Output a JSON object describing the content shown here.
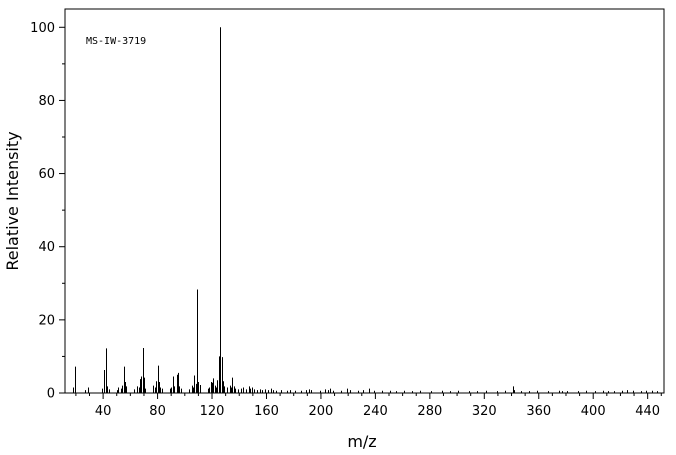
{
  "chart_data": {
    "type": "bar",
    "annotation": "MS-IW-3719",
    "xlabel": "m/z",
    "ylabel": "Relative Intensity",
    "xlim": [
      12,
      452
    ],
    "ylim": [
      0,
      105
    ],
    "x_ticks": [
      40,
      80,
      120,
      160,
      200,
      240,
      280,
      320,
      360,
      400,
      440
    ],
    "y_ticks": [
      0,
      20,
      40,
      60,
      80,
      100
    ],
    "grid": false,
    "peaks": [
      [
        18,
        1.5
      ],
      [
        19,
        7.2
      ],
      [
        27,
        0.8
      ],
      [
        29,
        1.5
      ],
      [
        39,
        1.2
      ],
      [
        41,
        6.3
      ],
      [
        42,
        12.2
      ],
      [
        43,
        1.8
      ],
      [
        44,
        1.0
      ],
      [
        50,
        0.8
      ],
      [
        51,
        1.5
      ],
      [
        53,
        1.2
      ],
      [
        54,
        2.0
      ],
      [
        55,
        7.2
      ],
      [
        56,
        3.0
      ],
      [
        57,
        1.8
      ],
      [
        63,
        1.0
      ],
      [
        65,
        1.8
      ],
      [
        66,
        1.5
      ],
      [
        67,
        3.8
      ],
      [
        68,
        4.5
      ],
      [
        69,
        12.3
      ],
      [
        70,
        4.2
      ],
      [
        71,
        1.2
      ],
      [
        77,
        2.0
      ],
      [
        78,
        1.5
      ],
      [
        79,
        3.2
      ],
      [
        80,
        7.5
      ],
      [
        81,
        3.0
      ],
      [
        82,
        1.5
      ],
      [
        83,
        1.2
      ],
      [
        89,
        1.2
      ],
      [
        90,
        1.5
      ],
      [
        91,
        4.5
      ],
      [
        92,
        1.8
      ],
      [
        94,
        5.0
      ],
      [
        95,
        5.5
      ],
      [
        96,
        1.8
      ],
      [
        97,
        1.2
      ],
      [
        103,
        1.0
      ],
      [
        105,
        2.0
      ],
      [
        106,
        1.5
      ],
      [
        107,
        4.8
      ],
      [
        108,
        2.5
      ],
      [
        109,
        28.3
      ],
      [
        110,
        3.0
      ],
      [
        111,
        2.2
      ],
      [
        117,
        1.2
      ],
      [
        118,
        1.5
      ],
      [
        119,
        3.0
      ],
      [
        120,
        2.8
      ],
      [
        121,
        4.0
      ],
      [
        122,
        2.0
      ],
      [
        123,
        1.5
      ],
      [
        124,
        3.5
      ],
      [
        125,
        10.0
      ],
      [
        126,
        100.0
      ],
      [
        127,
        9.8
      ],
      [
        128,
        3.2
      ],
      [
        129,
        1.8
      ],
      [
        131,
        1.5
      ],
      [
        133,
        2.0
      ],
      [
        134,
        1.5
      ],
      [
        135,
        4.2
      ],
      [
        136,
        1.8
      ],
      [
        137,
        1.2
      ],
      [
        139,
        1.0
      ],
      [
        141,
        1.2
      ],
      [
        143,
        1.5
      ],
      [
        145,
        1.0
      ],
      [
        147,
        1.8
      ],
      [
        148,
        1.2
      ],
      [
        149,
        1.5
      ],
      [
        151,
        1.0
      ],
      [
        153,
        0.8
      ],
      [
        155,
        1.0
      ],
      [
        157,
        0.8
      ],
      [
        159,
        1.0
      ],
      [
        161,
        0.8
      ],
      [
        163,
        1.2
      ],
      [
        165,
        0.8
      ],
      [
        167,
        0.6
      ],
      [
        171,
        0.8
      ],
      [
        175,
        0.6
      ],
      [
        177,
        0.8
      ],
      [
        181,
        0.6
      ],
      [
        185,
        0.6
      ],
      [
        189,
        0.8
      ],
      [
        191,
        1.0
      ],
      [
        193,
        0.8
      ],
      [
        199,
        0.6
      ],
      [
        203,
        1.0
      ],
      [
        205,
        0.8
      ],
      [
        207,
        1.2
      ],
      [
        209,
        0.6
      ],
      [
        215,
        0.6
      ],
      [
        219,
        1.2
      ],
      [
        221,
        0.8
      ],
      [
        227,
        0.6
      ],
      [
        231,
        0.8
      ],
      [
        235,
        1.2
      ],
      [
        239,
        0.6
      ],
      [
        245,
        0.6
      ],
      [
        251,
        0.6
      ],
      [
        255,
        0.5
      ],
      [
        261,
        0.6
      ],
      [
        267,
        0.5
      ],
      [
        273,
        0.6
      ],
      [
        281,
        0.5
      ],
      [
        289,
        0.6
      ],
      [
        295,
        0.5
      ],
      [
        301,
        0.6
      ],
      [
        309,
        0.5
      ],
      [
        315,
        0.5
      ],
      [
        321,
        0.6
      ],
      [
        329,
        0.5
      ],
      [
        335,
        0.6
      ],
      [
        341,
        1.8
      ],
      [
        342,
        0.8
      ],
      [
        347,
        0.5
      ],
      [
        353,
        0.5
      ],
      [
        359,
        0.6
      ],
      [
        367,
        0.5
      ],
      [
        375,
        0.6
      ],
      [
        377,
        0.5
      ],
      [
        381,
        0.5
      ],
      [
        389,
        0.5
      ],
      [
        395,
        0.6
      ],
      [
        401,
        0.5
      ],
      [
        407,
        0.6
      ],
      [
        411,
        0.5
      ],
      [
        415,
        0.5
      ],
      [
        421,
        0.6
      ],
      [
        425,
        0.8
      ],
      [
        429,
        0.6
      ],
      [
        435,
        0.5
      ],
      [
        439,
        0.6
      ],
      [
        443,
        0.6
      ],
      [
        447,
        0.5
      ]
    ]
  }
}
